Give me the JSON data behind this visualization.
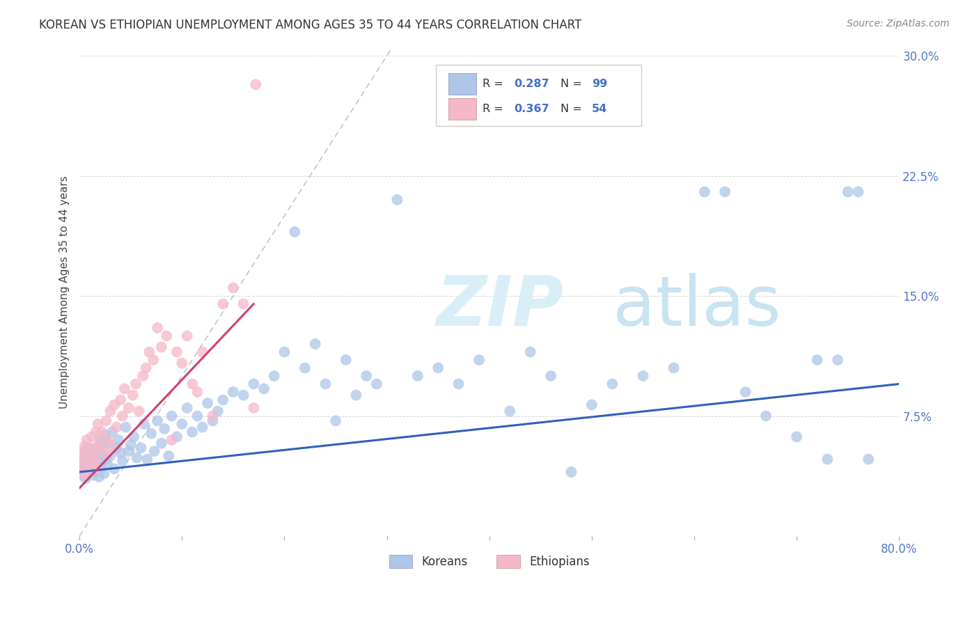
{
  "title": "KOREAN VS ETHIOPIAN UNEMPLOYMENT AMONG AGES 35 TO 44 YEARS CORRELATION CHART",
  "source": "Source: ZipAtlas.com",
  "ylabel": "Unemployment Among Ages 35 to 44 years",
  "xlim": [
    0.0,
    0.8
  ],
  "ylim": [
    0.0,
    0.305
  ],
  "xticks": [
    0.0,
    0.1,
    0.2,
    0.3,
    0.4,
    0.5,
    0.6,
    0.7,
    0.8
  ],
  "xticklabels": [
    "0.0%",
    "",
    "",
    "",
    "",
    "",
    "",
    "",
    "80.0%"
  ],
  "yticks": [
    0.0,
    0.075,
    0.15,
    0.225,
    0.3
  ],
  "yticklabels": [
    "",
    "7.5%",
    "15.0%",
    "22.5%",
    "30.0%"
  ],
  "korean_R": "0.287",
  "korean_N": "99",
  "ethiopian_R": "0.367",
  "ethiopian_N": "54",
  "korean_color": "#aec6e8",
  "ethiopian_color": "#f5b8c8",
  "korean_line_color": "#3060c0",
  "ethiopian_line_color": "#d04070",
  "diagonal_color": "#bbbbbb",
  "watermark_zip_color": "#daeef8",
  "watermark_atlas_color": "#c8e4f0",
  "legend_box_color": "#e8e8e8",
  "tick_color": "#5577cc",
  "korean_x": [
    0.001,
    0.002,
    0.003,
    0.004,
    0.005,
    0.006,
    0.007,
    0.008,
    0.009,
    0.01,
    0.011,
    0.012,
    0.013,
    0.014,
    0.015,
    0.016,
    0.017,
    0.018,
    0.019,
    0.02,
    0.021,
    0.022,
    0.023,
    0.024,
    0.025,
    0.026,
    0.027,
    0.028,
    0.03,
    0.032,
    0.034,
    0.036,
    0.038,
    0.04,
    0.042,
    0.045,
    0.048,
    0.05,
    0.053,
    0.056,
    0.06,
    0.063,
    0.066,
    0.07,
    0.073,
    0.076,
    0.08,
    0.083,
    0.087,
    0.09,
    0.095,
    0.1,
    0.105,
    0.11,
    0.115,
    0.12,
    0.125,
    0.13,
    0.135,
    0.14,
    0.15,
    0.16,
    0.17,
    0.18,
    0.19,
    0.2,
    0.21,
    0.22,
    0.23,
    0.24,
    0.25,
    0.26,
    0.27,
    0.28,
    0.29,
    0.31,
    0.33,
    0.35,
    0.37,
    0.39,
    0.42,
    0.44,
    0.46,
    0.48,
    0.5,
    0.52,
    0.55,
    0.58,
    0.61,
    0.63,
    0.65,
    0.67,
    0.7,
    0.72,
    0.73,
    0.74,
    0.75,
    0.76,
    0.77
  ],
  "korean_y": [
    0.045,
    0.038,
    0.042,
    0.048,
    0.052,
    0.036,
    0.055,
    0.04,
    0.047,
    0.05,
    0.044,
    0.053,
    0.038,
    0.049,
    0.055,
    0.041,
    0.046,
    0.052,
    0.037,
    0.06,
    0.043,
    0.057,
    0.051,
    0.039,
    0.063,
    0.048,
    0.045,
    0.058,
    0.05,
    0.065,
    0.042,
    0.055,
    0.06,
    0.052,
    0.047,
    0.068,
    0.053,
    0.057,
    0.062,
    0.049,
    0.055,
    0.07,
    0.048,
    0.064,
    0.053,
    0.072,
    0.058,
    0.067,
    0.05,
    0.075,
    0.062,
    0.07,
    0.08,
    0.065,
    0.075,
    0.068,
    0.083,
    0.072,
    0.078,
    0.085,
    0.09,
    0.088,
    0.095,
    0.092,
    0.1,
    0.115,
    0.19,
    0.105,
    0.12,
    0.095,
    0.072,
    0.11,
    0.088,
    0.1,
    0.095,
    0.21,
    0.1,
    0.105,
    0.095,
    0.11,
    0.078,
    0.115,
    0.1,
    0.04,
    0.082,
    0.095,
    0.1,
    0.105,
    0.215,
    0.215,
    0.09,
    0.075,
    0.062,
    0.11,
    0.048,
    0.11,
    0.215,
    0.215,
    0.048
  ],
  "ethiopian_x": [
    0.001,
    0.002,
    0.003,
    0.004,
    0.005,
    0.006,
    0.007,
    0.008,
    0.009,
    0.01,
    0.011,
    0.012,
    0.013,
    0.015,
    0.016,
    0.017,
    0.018,
    0.019,
    0.02,
    0.022,
    0.024,
    0.026,
    0.028,
    0.03,
    0.032,
    0.034,
    0.036,
    0.04,
    0.042,
    0.044,
    0.048,
    0.052,
    0.055,
    0.058,
    0.062,
    0.065,
    0.068,
    0.072,
    0.076,
    0.08,
    0.085,
    0.09,
    0.095,
    0.1,
    0.105,
    0.11,
    0.115,
    0.12,
    0.13,
    0.14,
    0.15,
    0.16,
    0.17,
    0.172
  ],
  "ethiopian_y": [
    0.048,
    0.042,
    0.052,
    0.04,
    0.056,
    0.038,
    0.06,
    0.045,
    0.05,
    0.055,
    0.044,
    0.062,
    0.05,
    0.048,
    0.065,
    0.042,
    0.07,
    0.055,
    0.058,
    0.065,
    0.052,
    0.072,
    0.06,
    0.078,
    0.055,
    0.082,
    0.068,
    0.085,
    0.075,
    0.092,
    0.08,
    0.088,
    0.095,
    0.078,
    0.1,
    0.105,
    0.115,
    0.11,
    0.13,
    0.118,
    0.125,
    0.06,
    0.115,
    0.108,
    0.125,
    0.095,
    0.09,
    0.115,
    0.075,
    0.145,
    0.155,
    0.145,
    0.08,
    0.282
  ]
}
